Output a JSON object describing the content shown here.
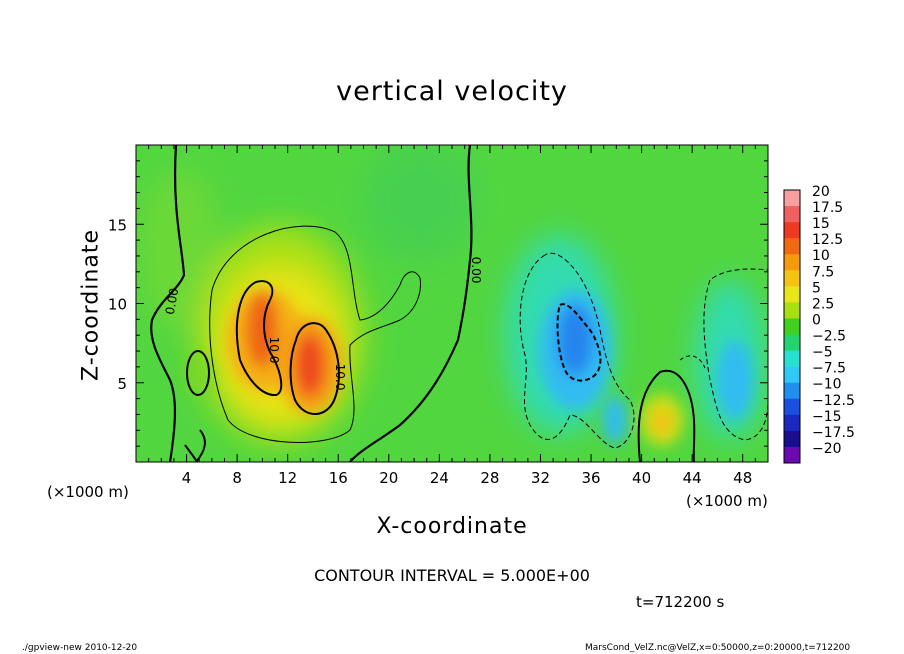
{
  "chart_data": {
    "type": "heatmap",
    "title": "vertical velocity",
    "xlabel": "X-coordinate",
    "ylabel": "Z-coordinate",
    "x_unit_label": "(×1000 m)",
    "y_unit_label": "(×1000 m)",
    "xlim": [
      0,
      50
    ],
    "ylim": [
      0,
      20
    ],
    "x_ticks": [
      4,
      8,
      12,
      16,
      20,
      24,
      28,
      32,
      36,
      40,
      44,
      48
    ],
    "y_ticks": [
      5,
      10,
      15
    ],
    "colorbar": {
      "labels": [
        "20",
        "17.5",
        "15",
        "12.5",
        "10",
        "7.5",
        "5",
        "2.5",
        "0",
        "−2.5",
        "−5",
        "−7.5",
        "−10",
        "−12.5",
        "−15",
        "−17.5",
        "−20"
      ],
      "values": [
        20,
        17.5,
        15,
        12.5,
        10,
        7.5,
        5,
        2.5,
        0,
        -2.5,
        -5,
        -7.5,
        -10,
        -12.5,
        -15,
        -17.5,
        -20
      ],
      "colors": [
        "#f8a0a0",
        "#f06060",
        "#ee3a22",
        "#ef6a10",
        "#f59a0c",
        "#f5c410",
        "#e6e61a",
        "#a8e010",
        "#40d020",
        "#22d470",
        "#28e0d0",
        "#30c8f5",
        "#2090f0",
        "#1a50e0",
        "#1a28c0",
        "#1a0e90",
        "#6a0ab0"
      ]
    },
    "contour_labels": [
      "0.00",
      "0.00",
      "10.0",
      "10.0"
    ],
    "features": [
      {
        "name": "updraft",
        "x": 13,
        "z": 7,
        "peak": 12.5
      },
      {
        "name": "updraft",
        "x": 10,
        "z": 9.5,
        "peak": 11
      },
      {
        "name": "downdraft",
        "x": 34,
        "z": 7.5,
        "peak": -10
      },
      {
        "name": "downdraft",
        "x": 47,
        "z": 5.5,
        "peak": -7
      },
      {
        "name": "updraft",
        "x": 41.5,
        "z": 2.5,
        "peak": 5
      }
    ],
    "contour_interval_text": "CONTOUR INTERVAL = 5.000E+00",
    "time_text": "t=712200  s"
  },
  "footer": {
    "left": "./gpview-new   2010-12-20",
    "right": "MarsCond_VelZ.nc@VelZ,x=0:50000,z=0:20000,t=712200"
  }
}
